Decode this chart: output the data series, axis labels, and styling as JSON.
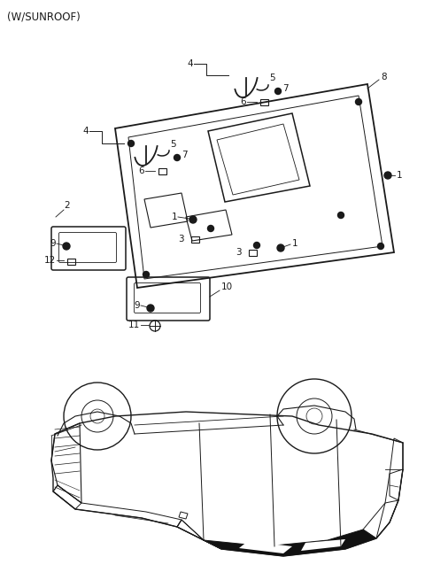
{
  "background_color": "#ffffff",
  "line_color": "#1a1a1a",
  "text_color": "#1a1a1a",
  "fig_width": 4.8,
  "fig_height": 6.55,
  "dpi": 100,
  "top_label": "(W/SUNROOF)"
}
